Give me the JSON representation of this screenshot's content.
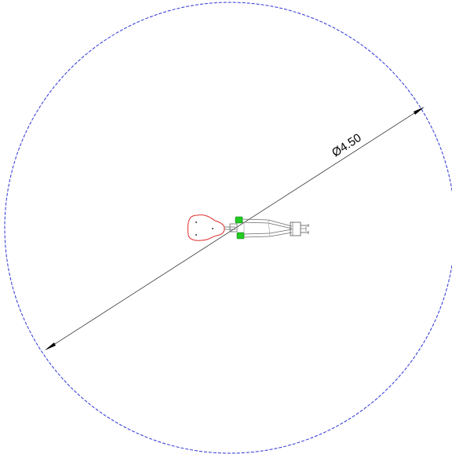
{
  "drawing": {
    "diameter_label": "Ø4.50",
    "colors": {
      "boundary_circle": "#2b33d6",
      "dimension_line": "#000000",
      "base_outline": "#e03030",
      "arm_outline": "#6a6a6a",
      "joint_fill": "#22cc22",
      "gripper_outline": "#555555"
    },
    "components": {
      "boundary": "reach-circle",
      "base": "robot-base",
      "arm": "robot-arm-links",
      "joints": "motor-joints",
      "tool": "gripper"
    }
  }
}
